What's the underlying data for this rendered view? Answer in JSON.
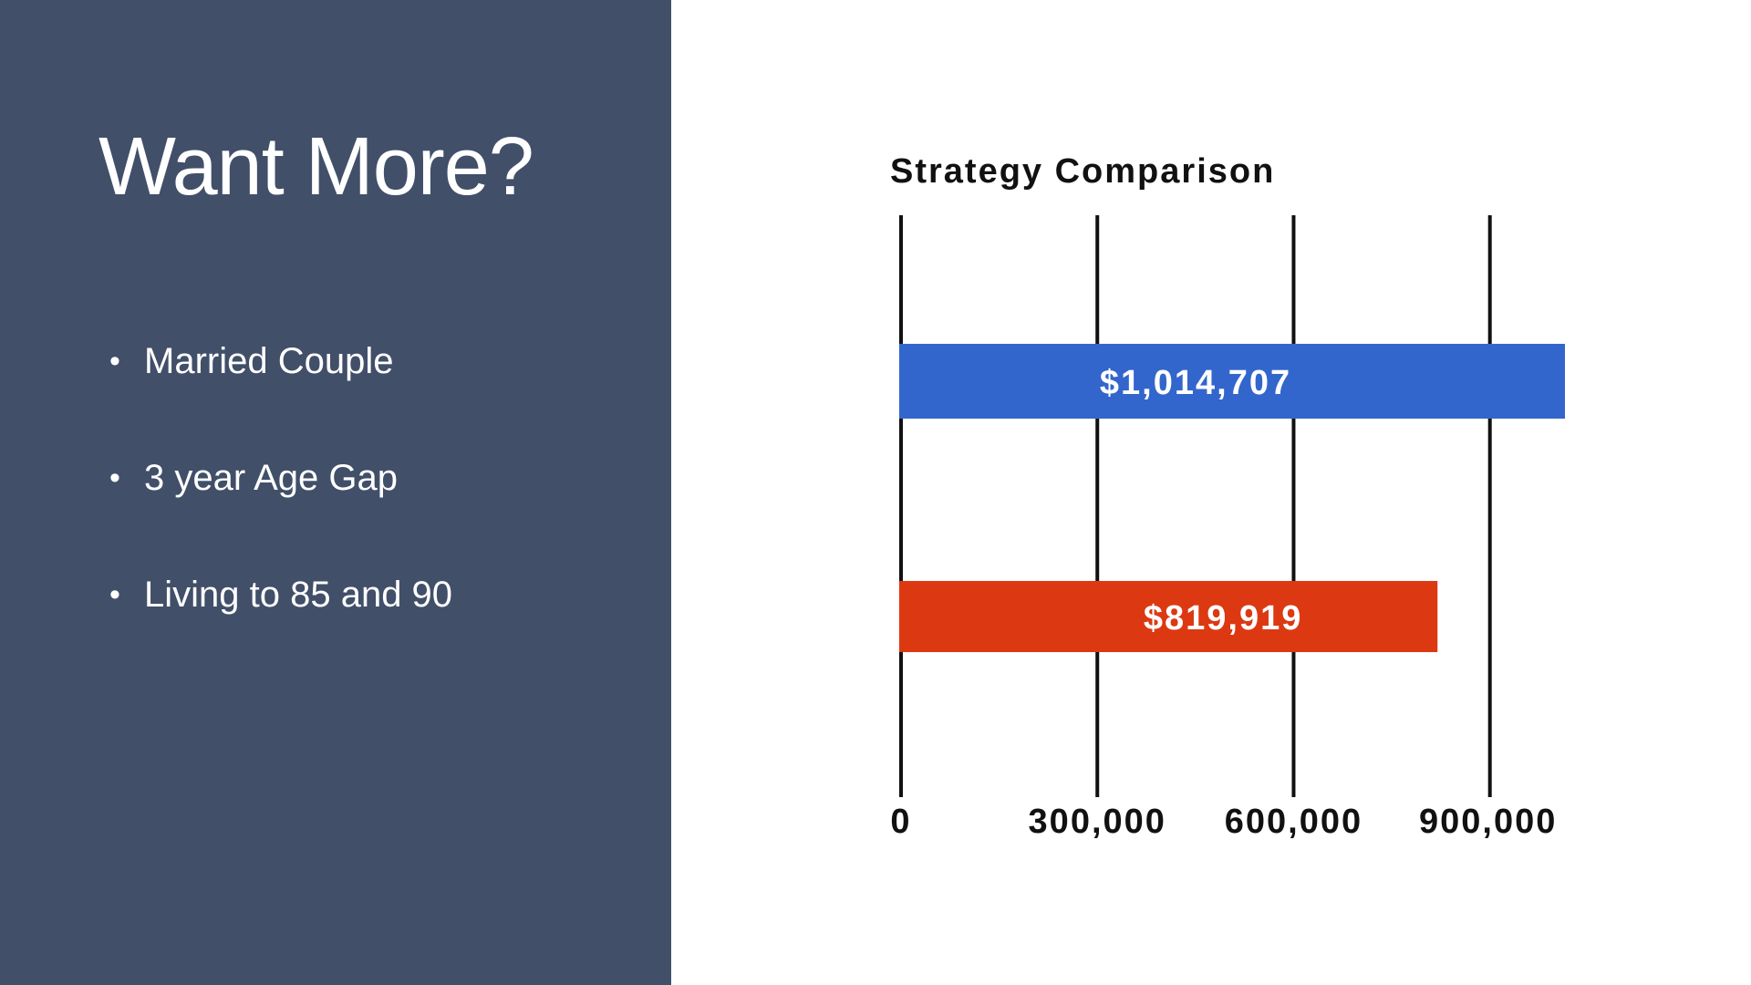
{
  "slide": {
    "title": "Want More?",
    "bullet_symbol": "•",
    "bullets": [
      "Married Couple",
      "3 year Age Gap",
      "Living to 85 and 90"
    ],
    "colors": {
      "left_panel": "#414f69",
      "background": "#ffffff"
    }
  },
  "chart_data": {
    "type": "bar",
    "orientation": "horizontal",
    "title": "Strategy Comparison",
    "xlabel": "",
    "ylabel": "",
    "xlim": [
      0,
      1014707
    ],
    "ticks": [
      0,
      300000,
      600000,
      900000
    ],
    "tick_labels": [
      "0",
      "300,000",
      "600,000",
      "900,000"
    ],
    "grid": true,
    "bars": [
      {
        "value": 1014707,
        "label": "$1,014,707",
        "color": "#3366cc"
      },
      {
        "value": 819919,
        "label": "$819,919",
        "color": "#dc3912"
      }
    ]
  }
}
